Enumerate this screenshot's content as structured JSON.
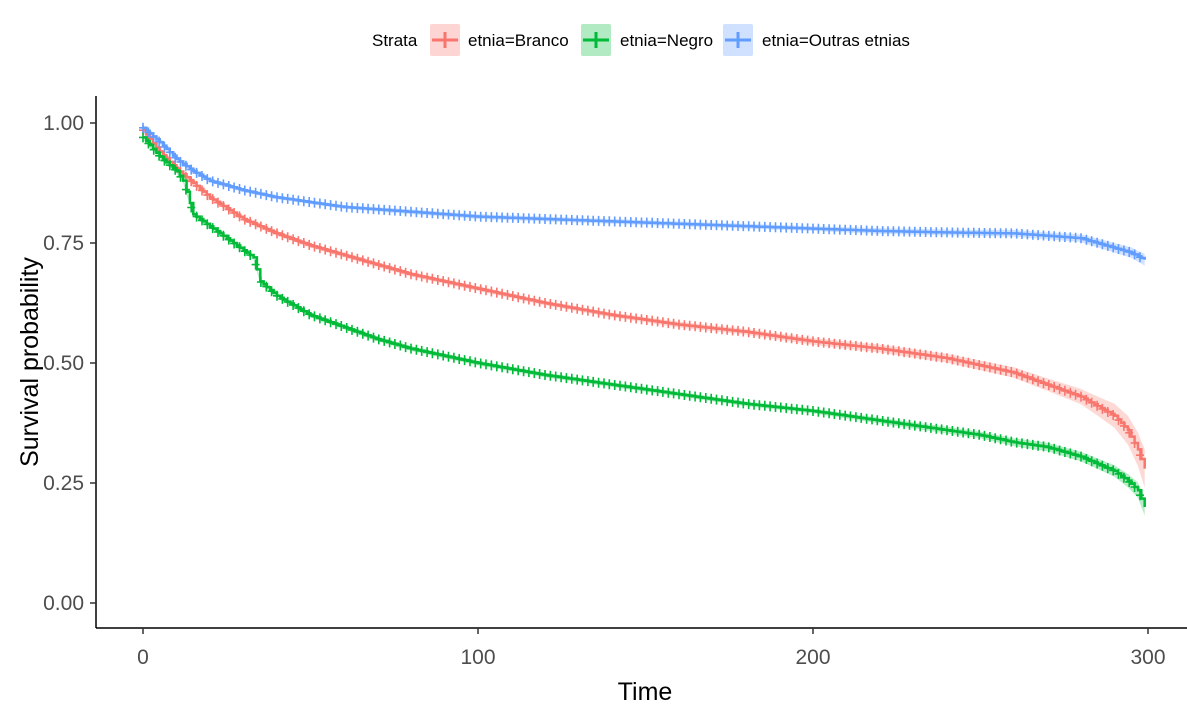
{
  "chart_data": {
    "type": "line",
    "subtype": "kaplan-meier survival curve with confidence bands and censor marks",
    "xlabel": "Time",
    "ylabel": "Survival probability",
    "xlim": [
      -15,
      308
    ],
    "ylim": [
      -0.05,
      1.06
    ],
    "x_ticks": [
      0,
      100,
      200,
      300
    ],
    "x_tick_labels": [
      "0",
      "100",
      "200",
      "300"
    ],
    "y_ticks": [
      0,
      0.25,
      0.5,
      0.75,
      1.0
    ],
    "y_tick_labels": [
      "0.00",
      "0.25",
      "0.50",
      "0.75",
      "1.00"
    ],
    "grid": false,
    "legend": {
      "title": "Strata",
      "position": "top",
      "entries": [
        "etnia=Branco",
        "etnia=Negro",
        "etnia=Outras etnias"
      ]
    },
    "series": [
      {
        "name": "etnia=Branco",
        "color": "#F8766D",
        "x": [
          0,
          5,
          10,
          15,
          20,
          30,
          40,
          50,
          60,
          70,
          80,
          100,
          120,
          140,
          160,
          180,
          200,
          220,
          240,
          250,
          260,
          270,
          280,
          285,
          290,
          294,
          297,
          299
        ],
        "y": [
          0.985,
          0.94,
          0.905,
          0.875,
          0.845,
          0.8,
          0.77,
          0.745,
          0.725,
          0.705,
          0.685,
          0.655,
          0.625,
          0.6,
          0.58,
          0.565,
          0.545,
          0.53,
          0.51,
          0.495,
          0.48,
          0.455,
          0.43,
          0.41,
          0.39,
          0.36,
          0.32,
          0.28
        ],
        "band_halfwidth": [
          0.005,
          0.005,
          0.005,
          0.005,
          0.005,
          0.005,
          0.005,
          0.005,
          0.005,
          0.005,
          0.005,
          0.005,
          0.005,
          0.005,
          0.006,
          0.006,
          0.007,
          0.008,
          0.009,
          0.01,
          0.011,
          0.013,
          0.016,
          0.02,
          0.025,
          0.03,
          0.035,
          0.04
        ]
      },
      {
        "name": "etnia=Negro",
        "color": "#00BA38",
        "x": [
          0,
          5,
          10,
          12,
          15,
          20,
          25,
          30,
          33,
          35,
          40,
          50,
          60,
          70,
          80,
          90,
          100,
          120,
          140,
          160,
          180,
          200,
          220,
          240,
          250,
          260,
          270,
          280,
          285,
          290,
          294,
          297,
          299
        ],
        "y": [
          0.97,
          0.93,
          0.9,
          0.88,
          0.81,
          0.785,
          0.76,
          0.735,
          0.72,
          0.67,
          0.64,
          0.6,
          0.575,
          0.55,
          0.53,
          0.515,
          0.5,
          0.475,
          0.455,
          0.435,
          0.415,
          0.4,
          0.38,
          0.36,
          0.35,
          0.335,
          0.325,
          0.305,
          0.29,
          0.275,
          0.255,
          0.235,
          0.2
        ],
        "band_halfwidth": [
          0.005,
          0.005,
          0.005,
          0.005,
          0.005,
          0.005,
          0.005,
          0.005,
          0.005,
          0.005,
          0.005,
          0.005,
          0.005,
          0.005,
          0.005,
          0.005,
          0.005,
          0.005,
          0.005,
          0.005,
          0.005,
          0.005,
          0.006,
          0.007,
          0.007,
          0.008,
          0.009,
          0.01,
          0.011,
          0.012,
          0.014,
          0.016,
          0.018
        ]
      },
      {
        "name": "etnia=Outras etnias",
        "color": "#619CFF",
        "x": [
          0,
          5,
          10,
          15,
          20,
          30,
          40,
          50,
          60,
          80,
          100,
          120,
          140,
          160,
          180,
          200,
          220,
          240,
          260,
          270,
          280,
          285,
          290,
          295,
          299
        ],
        "y": [
          0.99,
          0.96,
          0.925,
          0.9,
          0.88,
          0.86,
          0.845,
          0.835,
          0.825,
          0.815,
          0.805,
          0.8,
          0.795,
          0.79,
          0.785,
          0.78,
          0.775,
          0.772,
          0.77,
          0.765,
          0.76,
          0.75,
          0.74,
          0.73,
          0.715
        ],
        "band_halfwidth": [
          0.004,
          0.004,
          0.004,
          0.004,
          0.004,
          0.004,
          0.004,
          0.004,
          0.004,
          0.005,
          0.005,
          0.005,
          0.005,
          0.005,
          0.005,
          0.005,
          0.006,
          0.006,
          0.007,
          0.007,
          0.008,
          0.009,
          0.01,
          0.011,
          0.012
        ]
      }
    ]
  }
}
